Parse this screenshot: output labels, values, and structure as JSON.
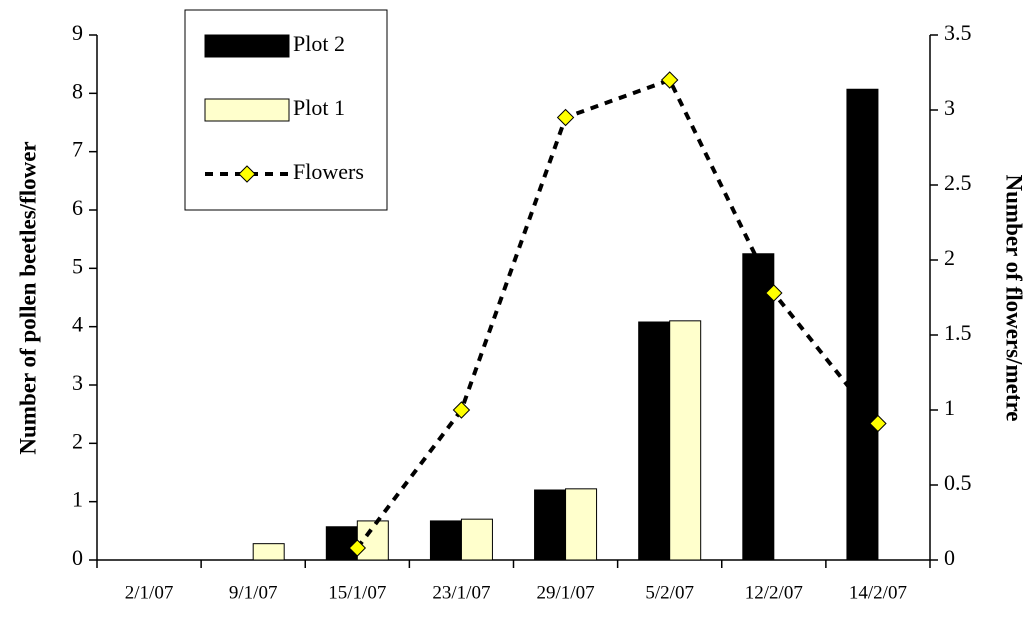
{
  "chart_data": {
    "type": "bar",
    "y_label": "Number of pollen beetles/flower",
    "y2_label": "Number of flowers/metre",
    "categories": [
      "2/1/07",
      "9/1/07",
      "15/1/07",
      "23/1/07",
      "29/1/07",
      "5/2/07",
      "12/2/07",
      "14/2/07"
    ],
    "series": [
      {
        "name": "Plot 2",
        "type": "bar",
        "color": "#000000",
        "values": [
          null,
          null,
          0.57,
          0.67,
          1.2,
          4.08,
          5.25,
          8.07
        ]
      },
      {
        "name": "Plot 1",
        "type": "bar",
        "color": "#ffffcc",
        "values": [
          null,
          0.28,
          0.67,
          0.7,
          1.22,
          4.1,
          null,
          null
        ]
      },
      {
        "name": "Flowers",
        "type": "line",
        "axis": "y2",
        "color": "#000000",
        "marker_color": "#ffff00",
        "values": [
          null,
          null,
          0.08,
          1.0,
          2.95,
          3.2,
          1.78,
          0.91
        ]
      }
    ],
    "ylim": [
      0,
      9
    ],
    "yticks": [
      0,
      1,
      2,
      3,
      4,
      5,
      6,
      7,
      8,
      9
    ],
    "y2lim": [
      0,
      3.5
    ],
    "y2ticks": [
      0,
      0.5,
      1,
      1.5,
      2,
      2.5,
      3,
      3.5
    ],
    "legend": "top-left",
    "grid": false
  }
}
